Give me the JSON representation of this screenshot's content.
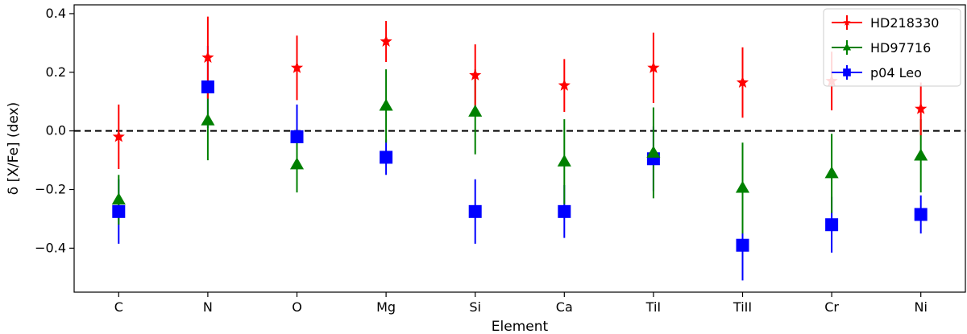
{
  "chart_data": {
    "type": "scatter",
    "xlabel": "Element",
    "ylabel": "δ [X/Fe] (dex)",
    "categories": [
      "C",
      "N",
      "O",
      "Mg",
      "Si",
      "Ca",
      "TiI",
      "TiII",
      "Cr",
      "Ni"
    ],
    "ylim": [
      -0.55,
      0.43
    ],
    "yticks": [
      -0.4,
      -0.2,
      0.0,
      0.2,
      0.4
    ],
    "ytick_labels": [
      "−0.4",
      "−0.2",
      "0.0",
      "0.2",
      "0.4"
    ],
    "reference_line": {
      "y": 0.0,
      "style": "dashed",
      "color": "#000000"
    },
    "legend_position": "top-right",
    "series": [
      {
        "name": "HD218330",
        "color": "#ff0000",
        "marker": "star",
        "values": [
          -0.02,
          0.25,
          0.215,
          0.305,
          0.19,
          0.155,
          0.215,
          0.165,
          0.17,
          0.075
        ],
        "errors": [
          0.11,
          0.14,
          0.11,
          0.07,
          0.105,
          0.09,
          0.12,
          0.12,
          0.1,
          0.09
        ]
      },
      {
        "name": "HD97716",
        "color": "#008000",
        "marker": "triangle",
        "values": [
          -0.235,
          0.035,
          -0.115,
          0.085,
          0.065,
          -0.105,
          -0.075,
          -0.195,
          -0.145,
          -0.085
        ],
        "errors": [
          0.085,
          0.135,
          0.095,
          0.125,
          0.145,
          0.145,
          0.155,
          0.155,
          0.135,
          0.125
        ]
      },
      {
        "name": "p04 Leo",
        "color": "#0000ff",
        "marker": "square",
        "values": [
          -0.275,
          0.15,
          -0.02,
          -0.09,
          -0.275,
          -0.275,
          -0.095,
          -0.39,
          -0.32,
          -0.285
        ],
        "errors": [
          0.11,
          0.14,
          0.11,
          0.06,
          0.11,
          0.09,
          0.11,
          0.12,
          0.095,
          0.065
        ]
      }
    ]
  }
}
